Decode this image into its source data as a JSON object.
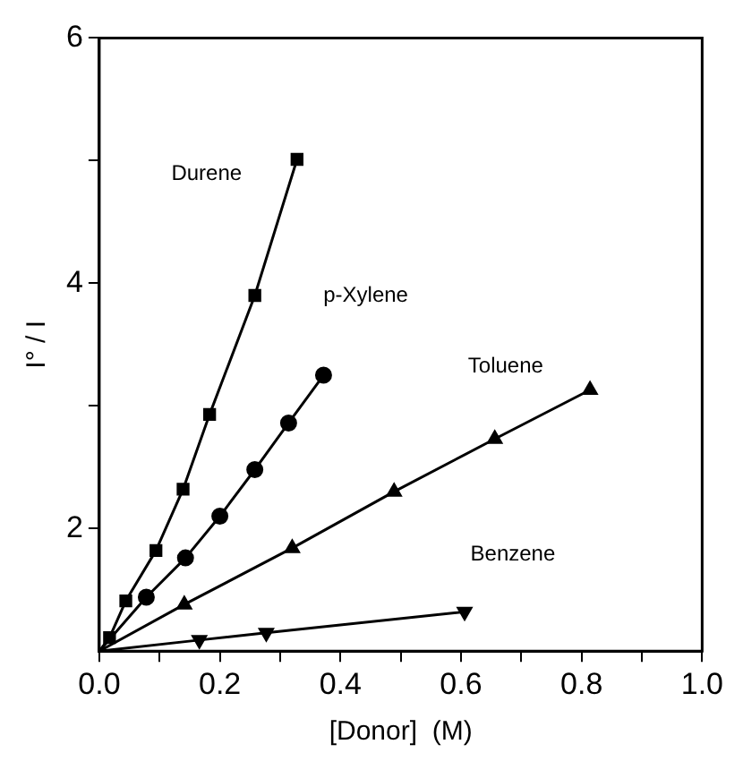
{
  "chart_data": {
    "type": "line",
    "xlabel": "[Donor]  (M)",
    "ylabel": "I° / I",
    "xlim": [
      0,
      1
    ],
    "xticks": [
      {
        "value": 0,
        "label": "0.0"
      },
      {
        "value": 0.1,
        "label": null
      },
      {
        "value": 0.2,
        "label": "0.2"
      },
      {
        "value": 0.3,
        "label": null
      },
      {
        "value": 0.4,
        "label": "0.4"
      },
      {
        "value": 0.5,
        "label": null
      },
      {
        "value": 0.6,
        "label": "0.6"
      },
      {
        "value": 0.7,
        "label": null
      },
      {
        "value": 0.8,
        "label": "0.8"
      },
      {
        "value": 0.9,
        "label": null
      },
      {
        "value": 1,
        "label": "1.0"
      }
    ],
    "ylim": [
      1,
      6
    ],
    "yticks": [
      2,
      {
        "value": 3,
        "label": null
      },
      4,
      {
        "value": 5,
        "label": null
      },
      6
    ],
    "grid": false,
    "legend": false,
    "line_style": "solid",
    "series": [
      {
        "name": "Durene",
        "color": "#000000",
        "marker": "square",
        "x": [
          0,
          0.017,
          0.044,
          0.094,
          0.139,
          0.183,
          0.258,
          0.328
        ],
        "values": [
          1,
          1.11,
          1.41,
          1.82,
          2.32,
          2.93,
          3.9,
          5.01
        ]
      },
      {
        "name": "p-Xylene",
        "color": "#000000",
        "marker": "circle",
        "x": [
          0,
          0.078,
          0.143,
          0.2,
          0.258,
          0.314,
          0.372
        ],
        "values": [
          1,
          1.44,
          1.76,
          2.1,
          2.48,
          2.86,
          3.25
        ]
      },
      {
        "name": "Toluene",
        "color": "#000000",
        "marker": "triangle",
        "x": [
          0,
          0.141,
          0.32,
          0.489,
          0.656,
          0.814
        ],
        "values": [
          1,
          1.38,
          1.84,
          2.3,
          2.73,
          3.13
        ]
      },
      {
        "name": "Benzene",
        "color": "#000000",
        "marker": "triangle",
        "x": [
          0,
          0.166,
          0.277,
          0.606
        ],
        "values": [
          1,
          1.09,
          1.15,
          1.32
        ]
      }
    ]
  }
}
